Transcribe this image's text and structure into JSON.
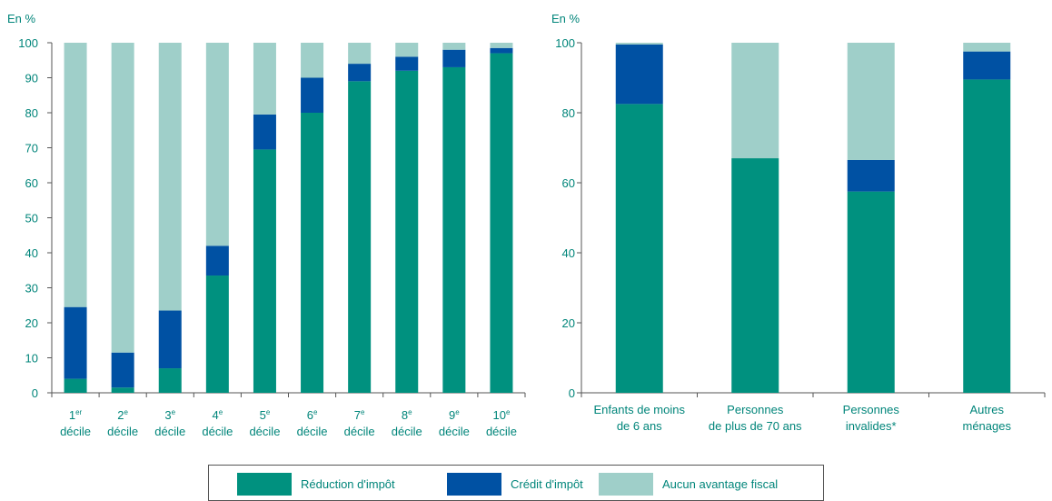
{
  "colors": {
    "reduction": "#00917f",
    "credit": "#0051a3",
    "aucun": "#9fcfc9",
    "text": "#00857a",
    "axis": "#555555"
  },
  "legend": {
    "reduction": "Réduction d'impôt",
    "credit": "Crédit d'impôt",
    "aucun": "Aucun avantage fiscal"
  },
  "chart_data": [
    {
      "type": "bar",
      "stacked": true,
      "unit_label": "En %",
      "ylim": [
        0,
        100
      ],
      "yticks": [
        0,
        10,
        20,
        30,
        40,
        50,
        60,
        70,
        80,
        90,
        100
      ],
      "categories": [
        {
          "num": "1",
          "sup": "er",
          "word": "décile"
        },
        {
          "num": "2",
          "sup": "e",
          "word": "décile"
        },
        {
          "num": "3",
          "sup": "e",
          "word": "décile"
        },
        {
          "num": "4",
          "sup": "e",
          "word": "décile"
        },
        {
          "num": "5",
          "sup": "e",
          "word": "décile"
        },
        {
          "num": "6",
          "sup": "e",
          "word": "décile"
        },
        {
          "num": "7",
          "sup": "e",
          "word": "décile"
        },
        {
          "num": "8",
          "sup": "e",
          "word": "décile"
        },
        {
          "num": "9",
          "sup": "e",
          "word": "décile"
        },
        {
          "num": "10",
          "sup": "e",
          "word": "décile"
        }
      ],
      "series": [
        {
          "name": "Réduction d'impôt",
          "key": "reduction",
          "values": [
            4,
            1.5,
            7,
            33.5,
            69.5,
            80,
            89,
            92,
            93,
            97
          ]
        },
        {
          "name": "Crédit d'impôt",
          "key": "credit",
          "values": [
            20.5,
            10,
            16.5,
            8.5,
            10,
            10,
            5,
            4,
            5,
            1.5
          ]
        },
        {
          "name": "Aucun avantage fiscal",
          "key": "aucun",
          "values": [
            75.5,
            88.5,
            76.5,
            58,
            20.5,
            10,
            6,
            4,
            2,
            1.5
          ]
        }
      ]
    },
    {
      "type": "bar",
      "stacked": true,
      "unit_label": "En %",
      "ylim": [
        0,
        100
      ],
      "yticks": [
        0,
        20,
        40,
        60,
        80,
        100
      ],
      "categories": [
        {
          "lines": [
            "Enfants de moins",
            "de 6 ans"
          ]
        },
        {
          "lines": [
            "Personnes",
            "de plus de 70 ans"
          ]
        },
        {
          "lines": [
            "Personnes",
            "invalides*"
          ]
        },
        {
          "lines": [
            "Autres",
            "ménages"
          ]
        }
      ],
      "series": [
        {
          "name": "Réduction d'impôt",
          "key": "reduction",
          "values": [
            82.5,
            67,
            57.5,
            89.5
          ]
        },
        {
          "name": "Crédit d'impôt",
          "key": "credit",
          "values": [
            17,
            0,
            9,
            8
          ]
        },
        {
          "name": "Aucun avantage fiscal",
          "key": "aucun",
          "values": [
            0.5,
            33,
            33.5,
            2.5
          ]
        }
      ]
    }
  ]
}
